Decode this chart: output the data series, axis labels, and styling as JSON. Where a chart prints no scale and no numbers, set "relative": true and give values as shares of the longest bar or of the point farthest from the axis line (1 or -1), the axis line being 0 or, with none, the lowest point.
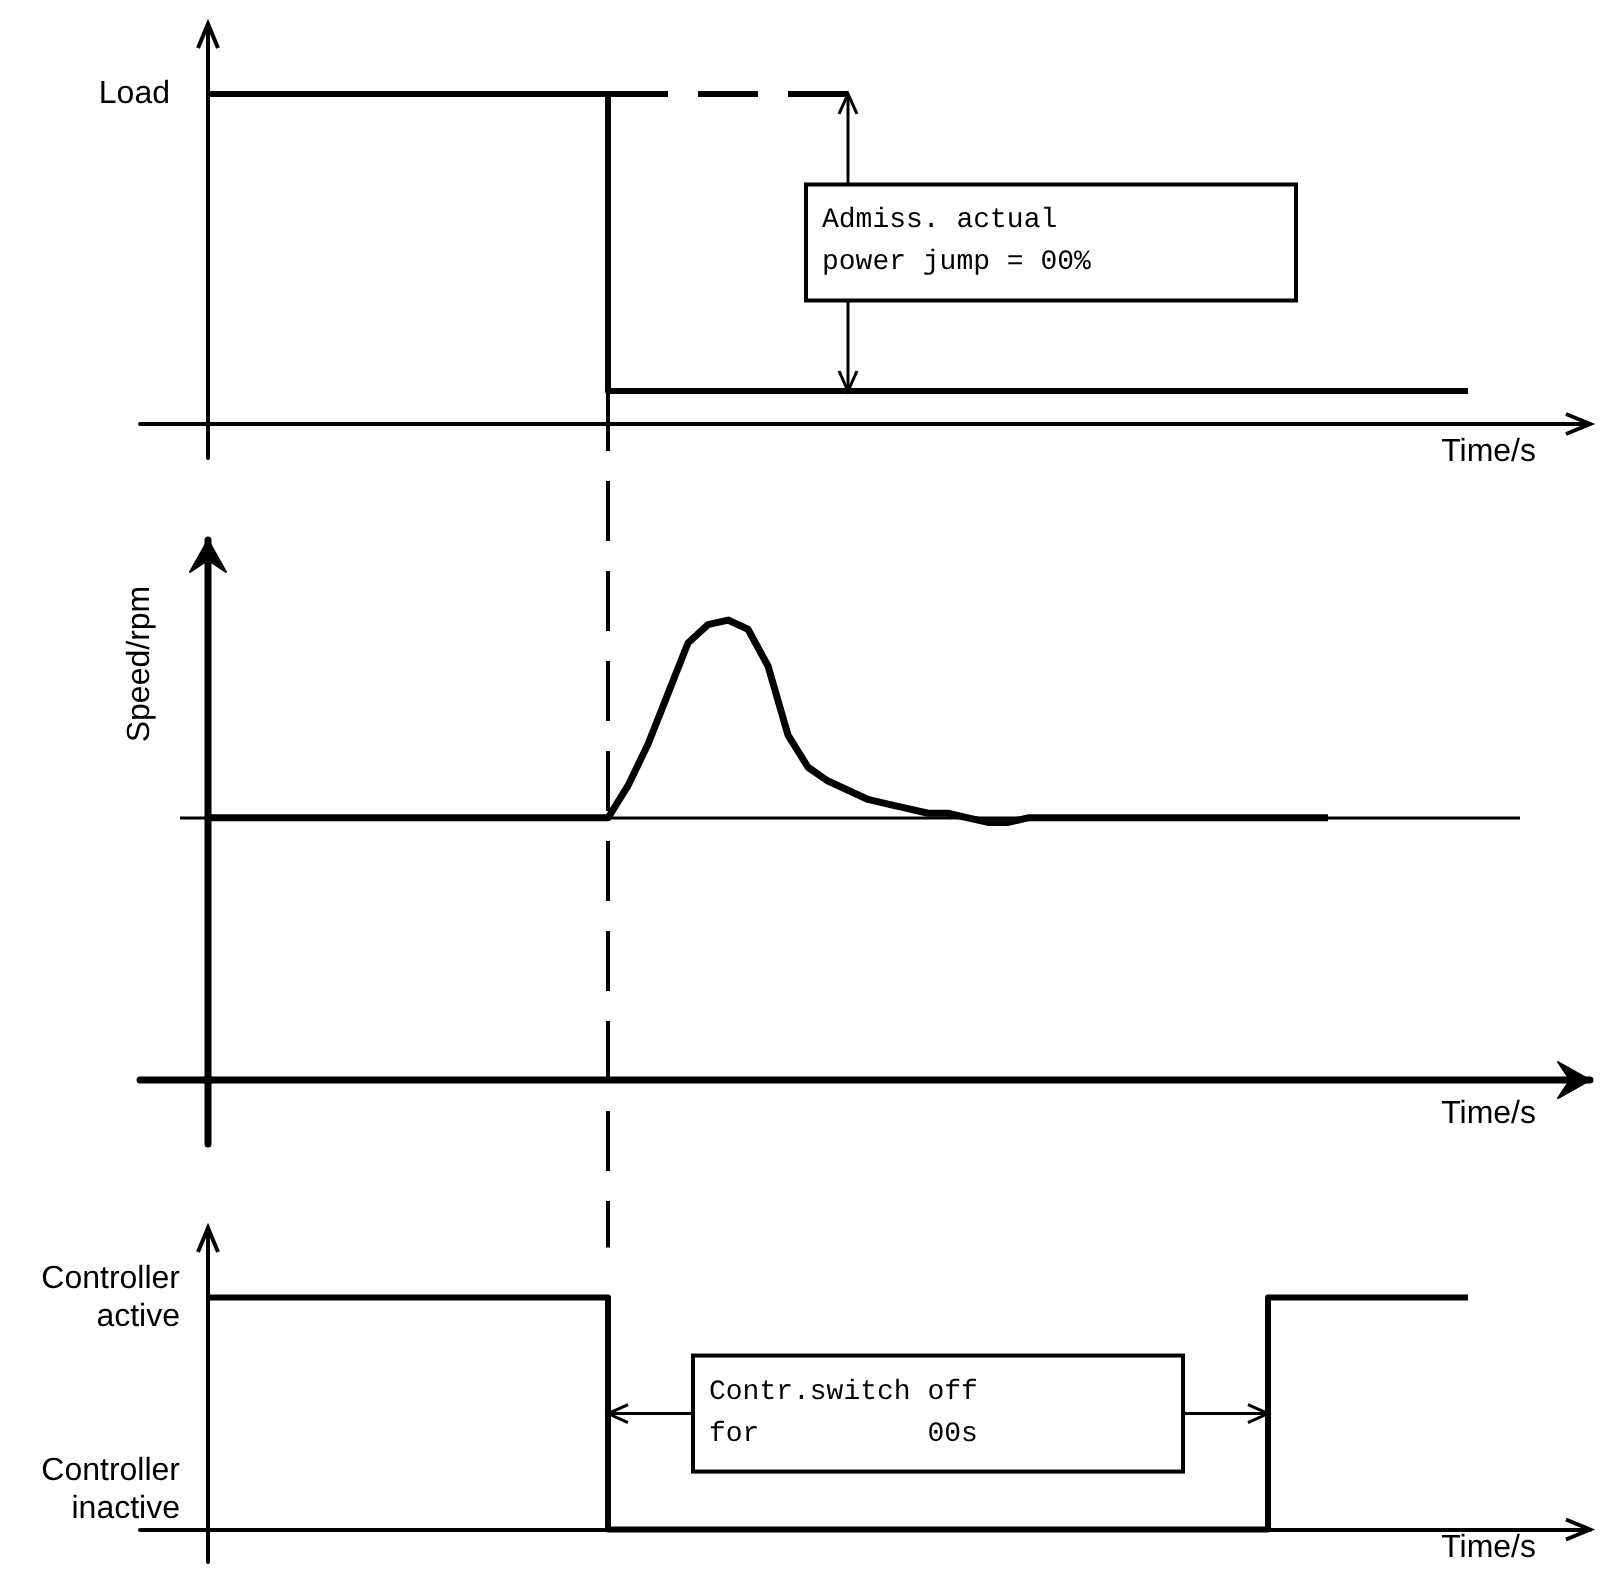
{
  "chart_data": [
    {
      "type": "step",
      "relative": true,
      "ylabel": "Load",
      "xlabel": "Time/s",
      "categories": [
        null,
        null,
        null,
        null,
        null,
        null,
        null,
        null,
        null,
        null,
        null,
        null,
        null,
        null,
        null,
        null,
        null,
        null,
        null,
        null,
        null,
        null,
        null,
        null,
        null,
        null,
        null,
        null,
        null,
        null,
        null,
        null,
        null,
        null,
        null,
        null,
        null,
        null,
        null,
        null,
        null,
        null,
        null,
        null,
        null,
        null,
        null,
        null,
        null,
        null,
        null,
        null,
        null,
        null,
        null,
        null,
        null,
        null,
        null,
        null,
        null,
        null,
        null,
        null
      ],
      "series": [
        {
          "color": "#000000",
          "values": [
            1,
            1,
            1,
            1,
            1,
            1,
            1,
            1,
            1,
            1,
            1,
            1,
            1,
            1,
            1,
            1,
            1,
            1,
            1,
            1,
            0.1,
            0.1,
            0.1,
            0.1,
            0.1,
            0.1,
            0.1,
            0.1,
            0.1,
            0.1,
            0.1,
            0.1,
            0.1,
            0.1,
            0.1,
            0.1,
            0.1,
            0.1,
            0.1,
            0.1,
            0.1,
            0.1,
            0.1,
            0.1,
            0.1,
            0.1,
            0.1,
            0.1,
            0.1,
            0.1,
            0.1,
            0.1,
            0.1,
            0.1,
            0.1,
            0.1,
            0.1,
            0.1,
            0.1,
            0.1,
            0.1,
            0.1,
            0.1,
            0.1
          ]
        },
        {
          "type": "line",
          "color": "#000000",
          "line_style": "dashed",
          "values": [
            null,
            null,
            null,
            null,
            null,
            null,
            null,
            null,
            null,
            null,
            null,
            null,
            null,
            null,
            null,
            null,
            null,
            null,
            null,
            null,
            1,
            1,
            1,
            1,
            1,
            1,
            1,
            1,
            1,
            1,
            1,
            1,
            1,
            1,
            null,
            null,
            null,
            null,
            null,
            null,
            null,
            null,
            null,
            null,
            null,
            null,
            null,
            null,
            null,
            null,
            null,
            null,
            null,
            null,
            null,
            null,
            null,
            null,
            null,
            null,
            null,
            null,
            null,
            null
          ]
        }
      ],
      "annotations": [
        "Admiss. actual\npower jump = 00%"
      ]
    },
    {
      "type": "line",
      "relative": true,
      "ylabel": "Speed/rpm",
      "xlabel": "Time/s",
      "categories": [
        null,
        null,
        null,
        null,
        null,
        null,
        null,
        null,
        null,
        null,
        null,
        null,
        null,
        null,
        null,
        null,
        null,
        null,
        null,
        null,
        null,
        null,
        null,
        null,
        null,
        null,
        null,
        null,
        null,
        null,
        null,
        null,
        null,
        null,
        null,
        null,
        null,
        null,
        null,
        null,
        null,
        null,
        null,
        null,
        null,
        null,
        null,
        null,
        null,
        null,
        null,
        null,
        null,
        null,
        null,
        null,
        null,
        null,
        null,
        null,
        null,
        null,
        null,
        null
      ],
      "series": [
        {
          "color": "#000000",
          "values": [
            0.57,
            0.57,
            0.57,
            0.57,
            0.57,
            0.57,
            0.57,
            0.57,
            0.57,
            0.57,
            0.57,
            0.57,
            0.57,
            0.57,
            0.57,
            0.57,
            0.57,
            0.57,
            0.57,
            0.57,
            0.57,
            0.64,
            0.73,
            0.84,
            0.95,
            0.99,
            1,
            0.98,
            0.9,
            0.75,
            0.68,
            0.65,
            0.63,
            0.61,
            0.6,
            0.59,
            0.58,
            0.58,
            0.57,
            0.56,
            0.56,
            0.57,
            0.57,
            0.57,
            0.57,
            0.57,
            0.57,
            0.57,
            0.57,
            0.57,
            0.57,
            0.57,
            0.57,
            0.57,
            0.57,
            0.57,
            0.57,
            null,
            null,
            null,
            null,
            null,
            null,
            null
          ]
        }
      ],
      "ref_lines": [
        {
          "axis": "y",
          "value": 0.57,
          "color": "#000000"
        }
      ]
    },
    {
      "type": "step",
      "relative": true,
      "xlabel": "Time/s",
      "categories": [
        null,
        null,
        null,
        null,
        null,
        null,
        null,
        null,
        null,
        null,
        null,
        null,
        null,
        null,
        null,
        null,
        null,
        null,
        null,
        null,
        null,
        null,
        null,
        null,
        null,
        null,
        null,
        null,
        null,
        null,
        null,
        null,
        null,
        null,
        null,
        null,
        null,
        null,
        null,
        null,
        null,
        null,
        null,
        null,
        null,
        null,
        null,
        null,
        null,
        null,
        null,
        null,
        null,
        null,
        null,
        null,
        null,
        null,
        null,
        null,
        null,
        null,
        null,
        null
      ],
      "series": [
        {
          "color": "#000000",
          "values": [
            1,
            1,
            1,
            1,
            1,
            1,
            1,
            1,
            1,
            1,
            1,
            1,
            1,
            1,
            1,
            1,
            1,
            1,
            1,
            1,
            0,
            0,
            0,
            0,
            0,
            0,
            0,
            0,
            0,
            0,
            0,
            0,
            0,
            0,
            0,
            0,
            0,
            0,
            0,
            0,
            0,
            0,
            0,
            0,
            0,
            0,
            0,
            0,
            0,
            0,
            0,
            0,
            0,
            1,
            1,
            1,
            1,
            1,
            1,
            1,
            1,
            1,
            1,
            1
          ]
        }
      ],
      "annotations": [
        "Controller\nactive",
        "Controller\ninactive",
        "Contr.switch off\nfor          00s"
      ]
    }
  ]
}
